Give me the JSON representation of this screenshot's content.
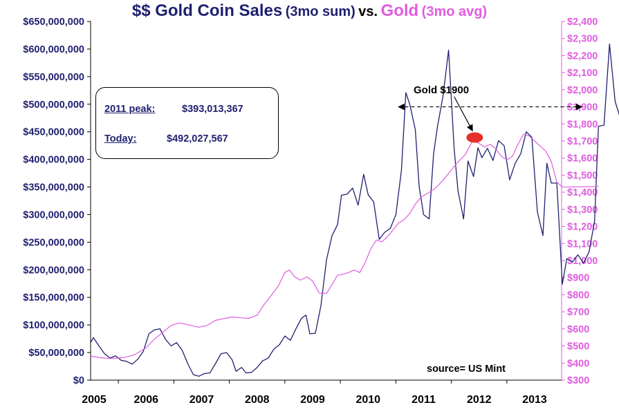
{
  "title": {
    "left_main": "$$ Gold Coin Sales",
    "left_sub": "(3mo sum)",
    "vs": "vs.",
    "right_main": "Gold",
    "right_sub": "(3mo avg)"
  },
  "infobox": {
    "peak_label": "2011 peak:",
    "peak_value": "$393,013,367",
    "today_label": "Today:",
    "today_value": "$492,027,567"
  },
  "annotation": {
    "gold_label": "Gold $1900"
  },
  "source": "source= US Mint",
  "colors": {
    "sales": "#1f1f70",
    "gold": "#e05ce0",
    "marker": "#e8302a",
    "axis_left_text": "#1f1f70",
    "axis_right_text": "#e05ce0"
  },
  "chart_data": {
    "type": "line",
    "grid": false,
    "x_ticks": [
      "2005",
      "2006",
      "2007",
      "2008",
      "2009",
      "2010",
      "2011",
      "2012",
      "2013"
    ],
    "y_left": {
      "lim": [
        0,
        650000000
      ],
      "ticks": [
        "$0",
        "$50,000,000",
        "$100,000,000",
        "$150,000,000",
        "$200,000,000",
        "$250,000,000",
        "$300,000,000",
        "$350,000,000",
        "$400,000,000",
        "$450,000,000",
        "$500,000,000",
        "$550,000,000",
        "$600,000,000",
        "$650,000,000"
      ]
    },
    "y_right": {
      "lim": [
        300,
        2400
      ],
      "ticks": [
        "$300",
        "$400",
        "$500",
        "$600",
        "$700",
        "$800",
        "$900",
        "$1,000",
        "$1,100",
        "$1,200",
        "$1,300",
        "$1,400",
        "$1,500",
        "$1,600",
        "$1,700",
        "$1,800",
        "$1,900",
        "$2,000",
        "$2,100",
        "$2,200",
        "$2,300",
        "$2,400"
      ]
    },
    "series": [
      {
        "name": "$$ Gold Coin Sales (3mo sum)",
        "axis": "left",
        "points": [
          [
            2005.0,
            68000000
          ],
          [
            2005.05,
            77000000
          ],
          [
            2005.15,
            62000000
          ],
          [
            2005.25,
            48000000
          ],
          [
            2005.35,
            40000000
          ],
          [
            2005.45,
            44000000
          ],
          [
            2005.55,
            36000000
          ],
          [
            2005.65,
            34000000
          ],
          [
            2005.75,
            29000000
          ],
          [
            2005.85,
            38000000
          ],
          [
            2005.95,
            52000000
          ],
          [
            2006.05,
            84000000
          ],
          [
            2006.15,
            91000000
          ],
          [
            2006.25,
            93000000
          ],
          [
            2006.35,
            74000000
          ],
          [
            2006.45,
            62000000
          ],
          [
            2006.55,
            68000000
          ],
          [
            2006.65,
            54000000
          ],
          [
            2006.75,
            30000000
          ],
          [
            2006.85,
            10000000
          ],
          [
            2006.95,
            7000000
          ],
          [
            2007.05,
            12000000
          ],
          [
            2007.15,
            13000000
          ],
          [
            2007.25,
            30000000
          ],
          [
            2007.35,
            48000000
          ],
          [
            2007.45,
            50000000
          ],
          [
            2007.55,
            37000000
          ],
          [
            2007.62,
            16000000
          ],
          [
            2007.72,
            23000000
          ],
          [
            2007.8,
            13000000
          ],
          [
            2007.9,
            14000000
          ],
          [
            2008.0,
            23000000
          ],
          [
            2008.1,
            35000000
          ],
          [
            2008.2,
            40000000
          ],
          [
            2008.3,
            56000000
          ],
          [
            2008.4,
            64000000
          ],
          [
            2008.5,
            80000000
          ],
          [
            2008.6,
            72000000
          ],
          [
            2008.7,
            93000000
          ],
          [
            2008.8,
            112000000
          ],
          [
            2008.88,
            118000000
          ],
          [
            2008.95,
            84000000
          ],
          [
            2009.05,
            85000000
          ],
          [
            2009.15,
            135000000
          ],
          [
            2009.25,
            218000000
          ],
          [
            2009.35,
            262000000
          ],
          [
            2009.45,
            282000000
          ],
          [
            2009.52,
            335000000
          ],
          [
            2009.62,
            337000000
          ],
          [
            2009.72,
            348000000
          ],
          [
            2009.82,
            317000000
          ],
          [
            2009.92,
            373000000
          ],
          [
            2010.0,
            336000000
          ],
          [
            2010.1,
            323000000
          ],
          [
            2010.2,
            255000000
          ],
          [
            2010.3,
            268000000
          ],
          [
            2010.4,
            275000000
          ],
          [
            2010.5,
            300000000
          ],
          [
            2010.6,
            380000000
          ],
          [
            2010.68,
            521000000
          ],
          [
            2010.75,
            500000000
          ],
          [
            2010.85,
            454000000
          ],
          [
            2010.92,
            350000000
          ],
          [
            2011.0,
            300000000
          ],
          [
            2011.1,
            292000000
          ],
          [
            2011.18,
            410000000
          ],
          [
            2011.25,
            460000000
          ],
          [
            2011.35,
            515000000
          ],
          [
            2011.45,
            598000000
          ],
          [
            2011.55,
            420000000
          ],
          [
            2011.62,
            342000000
          ],
          [
            2011.72,
            292000000
          ],
          [
            2011.8,
            397000000
          ],
          [
            2011.9,
            369000000
          ],
          [
            2011.98,
            421000000
          ],
          [
            2012.05,
            403000000
          ],
          [
            2012.15,
            420000000
          ],
          [
            2012.25,
            398000000
          ],
          [
            2012.35,
            434000000
          ],
          [
            2012.45,
            425000000
          ],
          [
            2012.55,
            363000000
          ],
          [
            2012.65,
            393000000
          ],
          [
            2012.75,
            410000000
          ],
          [
            2012.85,
            450000000
          ],
          [
            2012.95,
            440000000
          ],
          [
            2013.05,
            305000000
          ],
          [
            2013.15,
            262000000
          ],
          [
            2013.22,
            393000000
          ],
          [
            2013.3,
            357000000
          ],
          [
            2013.4,
            357000000
          ],
          [
            2013.5,
            174000000
          ],
          [
            2013.58,
            220000000
          ],
          [
            2013.68,
            214000000
          ],
          [
            2013.78,
            227000000
          ],
          [
            2013.88,
            212000000
          ],
          [
            2013.98,
            232000000
          ],
          [
            2014.08,
            288000000
          ],
          [
            2014.15,
            460000000
          ],
          [
            2014.25,
            462000000
          ],
          [
            2014.35,
            609000000
          ],
          [
            2014.45,
            505000000
          ],
          [
            2014.55,
            473000000
          ],
          [
            2014.65,
            546000000
          ],
          [
            2014.75,
            507000000
          ],
          [
            2014.85,
            492000000
          ]
        ]
      },
      {
        "name": "Gold (3mo avg)",
        "axis": "right",
        "points": [
          [
            2005.0,
            440
          ],
          [
            2005.15,
            433
          ],
          [
            2005.3,
            427
          ],
          [
            2005.45,
            428
          ],
          [
            2005.6,
            432
          ],
          [
            2005.8,
            450
          ],
          [
            2006.0,
            490
          ],
          [
            2006.15,
            540
          ],
          [
            2006.3,
            580
          ],
          [
            2006.45,
            620
          ],
          [
            2006.6,
            635
          ],
          [
            2006.75,
            625
          ],
          [
            2006.95,
            610
          ],
          [
            2007.1,
            620
          ],
          [
            2007.25,
            650
          ],
          [
            2007.4,
            660
          ],
          [
            2007.55,
            670
          ],
          [
            2007.7,
            665
          ],
          [
            2007.85,
            662
          ],
          [
            2008.0,
            680
          ],
          [
            2008.12,
            740
          ],
          [
            2008.25,
            795
          ],
          [
            2008.38,
            850
          ],
          [
            2008.5,
            930
          ],
          [
            2008.58,
            945
          ],
          [
            2008.68,
            905
          ],
          [
            2008.78,
            885
          ],
          [
            2008.9,
            905
          ],
          [
            2009.0,
            880
          ],
          [
            2009.12,
            810
          ],
          [
            2009.25,
            808
          ],
          [
            2009.35,
            860
          ],
          [
            2009.45,
            915
          ],
          [
            2009.55,
            920
          ],
          [
            2009.65,
            930
          ],
          [
            2009.75,
            945
          ],
          [
            2009.85,
            930
          ],
          [
            2009.95,
            990
          ],
          [
            2010.05,
            1070
          ],
          [
            2010.15,
            1120
          ],
          [
            2010.25,
            1110
          ],
          [
            2010.35,
            1140
          ],
          [
            2010.45,
            1180
          ],
          [
            2010.55,
            1220
          ],
          [
            2010.65,
            1240
          ],
          [
            2010.75,
            1275
          ],
          [
            2010.85,
            1330
          ],
          [
            2010.95,
            1370
          ],
          [
            2011.05,
            1390
          ],
          [
            2011.2,
            1420
          ],
          [
            2011.35,
            1470
          ],
          [
            2011.5,
            1530
          ],
          [
            2011.6,
            1570
          ],
          [
            2011.75,
            1620
          ],
          [
            2011.88,
            1700
          ],
          [
            2011.98,
            1690
          ],
          [
            2012.1,
            1665
          ],
          [
            2012.2,
            1680
          ],
          [
            2012.3,
            1655
          ],
          [
            2012.4,
            1610
          ],
          [
            2012.5,
            1590
          ],
          [
            2012.6,
            1610
          ],
          [
            2012.7,
            1680
          ],
          [
            2012.8,
            1740
          ],
          [
            2012.9,
            1730
          ],
          [
            2013.0,
            1700
          ],
          [
            2013.1,
            1670
          ],
          [
            2013.2,
            1640
          ],
          [
            2013.3,
            1580
          ],
          [
            2013.4,
            1460
          ],
          [
            2013.5,
            1430
          ],
          [
            2014.05,
            1433
          ],
          [
            2014.15,
            1435
          ]
        ]
      }
    ],
    "marker": {
      "x": 2011.92,
      "y_right": 1720
    },
    "reference_line": {
      "y_right": 1900,
      "x_from": 2010.55,
      "x_to": 2013.85
    },
    "arrow": {
      "from_x": 2011.55,
      "from_y_right": 1960,
      "to_x": 2011.88,
      "to_y_right": 1760
    }
  }
}
